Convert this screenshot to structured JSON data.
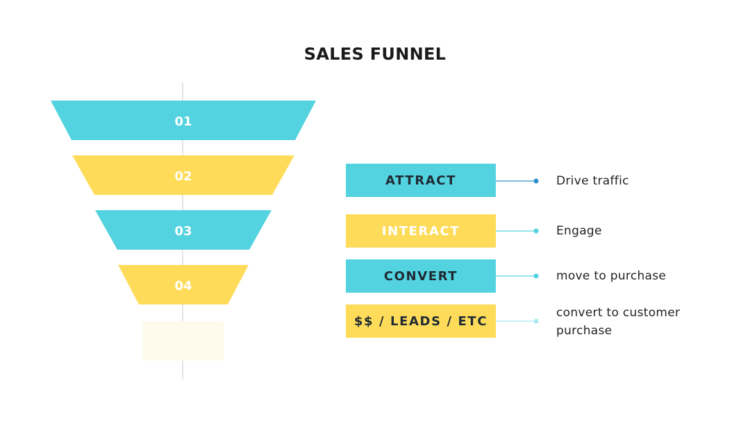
{
  "title": "SALES FUNNEL",
  "colors": {
    "teal": "#52d3df",
    "yellow": "#fedc5a",
    "pale_yellow": "#fffaeb",
    "axis_line": "#c8c8c8"
  },
  "funnel": [
    {
      "number": "01",
      "color": "teal"
    },
    {
      "number": "02",
      "color": "yellow"
    },
    {
      "number": "03",
      "color": "teal"
    },
    {
      "number": "04",
      "color": "yellow"
    }
  ],
  "stages": [
    {
      "label": "ATTRACT",
      "color": "teal",
      "label_color": "#1f2a33",
      "connector_color": "#2e8fcf",
      "description": "Drive traffic"
    },
    {
      "label": "INTERACT",
      "color": "yellow",
      "label_color": "#ffffff",
      "connector_color": "#52d3df",
      "description": "Engage"
    },
    {
      "label": "CONVERT",
      "color": "teal",
      "label_color": "#1f2a33",
      "connector_color": "#52d3df",
      "description": "move to purchase"
    },
    {
      "label": "$$ / LEADS / ETC",
      "color": "yellow",
      "label_color": "#1f2a33",
      "connector_color": "#a9e9ef",
      "description": "convert to customer purchase"
    }
  ]
}
